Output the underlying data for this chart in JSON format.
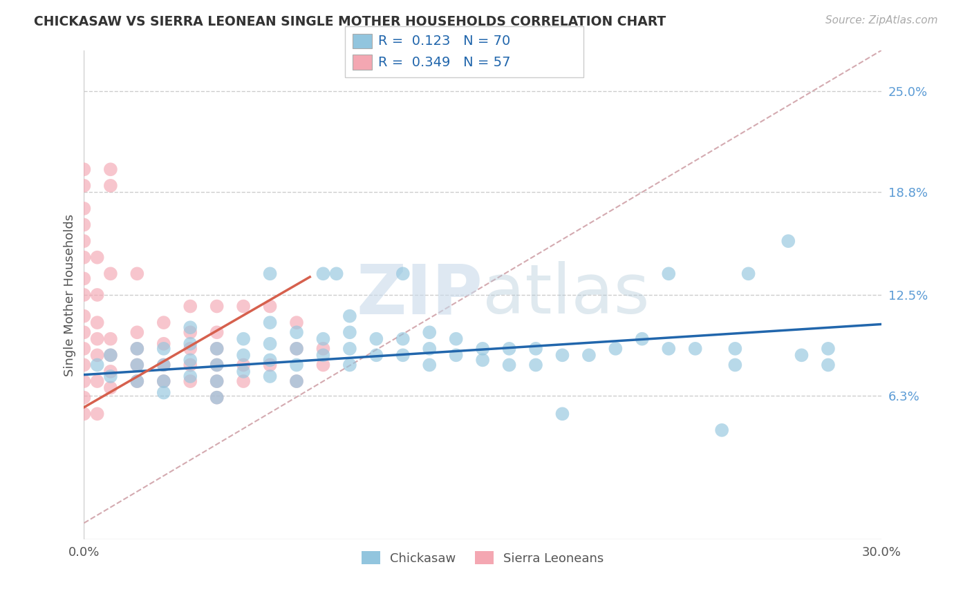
{
  "title": "CHICKASAW VS SIERRA LEONEAN SINGLE MOTHER HOUSEHOLDS CORRELATION CHART",
  "source": "Source: ZipAtlas.com",
  "ylabel": "Single Mother Households",
  "xlim": [
    0.0,
    0.3
  ],
  "ylim": [
    -0.025,
    0.275
  ],
  "ytick_labels": [
    "6.3%",
    "12.5%",
    "18.8%",
    "25.0%"
  ],
  "ytick_positions": [
    0.063,
    0.125,
    0.188,
    0.25
  ],
  "legend_label1": "Chickasaw",
  "legend_label2": "Sierra Leoneans",
  "color_blue": "#92c5de",
  "color_pink": "#f4a7b2",
  "color_blue_line": "#2166ac",
  "color_pink_line": "#d6604d",
  "color_diag": "#d4aab0",
  "blue_line_x0": 0.0,
  "blue_line_y0": 0.076,
  "blue_line_x1": 0.3,
  "blue_line_y1": 0.107,
  "pink_line_x0": 0.0,
  "pink_line_y0": 0.056,
  "pink_line_x1": 0.085,
  "pink_line_y1": 0.136,
  "blue_scatter": [
    [
      0.005,
      0.082
    ],
    [
      0.01,
      0.075
    ],
    [
      0.01,
      0.088
    ],
    [
      0.02,
      0.072
    ],
    [
      0.02,
      0.082
    ],
    [
      0.02,
      0.092
    ],
    [
      0.03,
      0.072
    ],
    [
      0.03,
      0.082
    ],
    [
      0.03,
      0.092
    ],
    [
      0.03,
      0.065
    ],
    [
      0.04,
      0.075
    ],
    [
      0.04,
      0.085
    ],
    [
      0.04,
      0.095
    ],
    [
      0.04,
      0.105
    ],
    [
      0.05,
      0.072
    ],
    [
      0.05,
      0.082
    ],
    [
      0.05,
      0.092
    ],
    [
      0.05,
      0.062
    ],
    [
      0.06,
      0.078
    ],
    [
      0.06,
      0.088
    ],
    [
      0.06,
      0.098
    ],
    [
      0.07,
      0.075
    ],
    [
      0.07,
      0.085
    ],
    [
      0.07,
      0.095
    ],
    [
      0.07,
      0.108
    ],
    [
      0.07,
      0.138
    ],
    [
      0.08,
      0.072
    ],
    [
      0.08,
      0.082
    ],
    [
      0.08,
      0.092
    ],
    [
      0.08,
      0.102
    ],
    [
      0.09,
      0.088
    ],
    [
      0.09,
      0.098
    ],
    [
      0.09,
      0.138
    ],
    [
      0.095,
      0.138
    ],
    [
      0.1,
      0.082
    ],
    [
      0.1,
      0.092
    ],
    [
      0.1,
      0.102
    ],
    [
      0.1,
      0.112
    ],
    [
      0.11,
      0.088
    ],
    [
      0.11,
      0.098
    ],
    [
      0.12,
      0.088
    ],
    [
      0.12,
      0.098
    ],
    [
      0.12,
      0.138
    ],
    [
      0.13,
      0.082
    ],
    [
      0.13,
      0.092
    ],
    [
      0.13,
      0.102
    ],
    [
      0.14,
      0.088
    ],
    [
      0.14,
      0.098
    ],
    [
      0.15,
      0.092
    ],
    [
      0.15,
      0.085
    ],
    [
      0.16,
      0.092
    ],
    [
      0.16,
      0.082
    ],
    [
      0.17,
      0.092
    ],
    [
      0.17,
      0.082
    ],
    [
      0.18,
      0.088
    ],
    [
      0.18,
      0.052
    ],
    [
      0.19,
      0.088
    ],
    [
      0.2,
      0.092
    ],
    [
      0.21,
      0.098
    ],
    [
      0.22,
      0.138
    ],
    [
      0.22,
      0.092
    ],
    [
      0.23,
      0.092
    ],
    [
      0.24,
      0.042
    ],
    [
      0.245,
      0.092
    ],
    [
      0.245,
      0.082
    ],
    [
      0.25,
      0.138
    ],
    [
      0.265,
      0.158
    ],
    [
      0.27,
      0.088
    ],
    [
      0.28,
      0.092
    ],
    [
      0.28,
      0.082
    ]
  ],
  "pink_scatter": [
    [
      0.0,
      0.052
    ],
    [
      0.0,
      0.062
    ],
    [
      0.0,
      0.072
    ],
    [
      0.0,
      0.082
    ],
    [
      0.0,
      0.092
    ],
    [
      0.0,
      0.102
    ],
    [
      0.0,
      0.112
    ],
    [
      0.0,
      0.125
    ],
    [
      0.0,
      0.135
    ],
    [
      0.0,
      0.148
    ],
    [
      0.0,
      0.158
    ],
    [
      0.0,
      0.168
    ],
    [
      0.0,
      0.178
    ],
    [
      0.0,
      0.192
    ],
    [
      0.0,
      0.202
    ],
    [
      0.005,
      0.052
    ],
    [
      0.005,
      0.072
    ],
    [
      0.005,
      0.088
    ],
    [
      0.005,
      0.098
    ],
    [
      0.005,
      0.108
    ],
    [
      0.005,
      0.125
    ],
    [
      0.005,
      0.148
    ],
    [
      0.01,
      0.068
    ],
    [
      0.01,
      0.078
    ],
    [
      0.01,
      0.088
    ],
    [
      0.01,
      0.098
    ],
    [
      0.01,
      0.138
    ],
    [
      0.01,
      0.192
    ],
    [
      0.01,
      0.202
    ],
    [
      0.02,
      0.072
    ],
    [
      0.02,
      0.082
    ],
    [
      0.02,
      0.092
    ],
    [
      0.02,
      0.102
    ],
    [
      0.02,
      0.138
    ],
    [
      0.03,
      0.072
    ],
    [
      0.03,
      0.082
    ],
    [
      0.03,
      0.095
    ],
    [
      0.03,
      0.108
    ],
    [
      0.04,
      0.072
    ],
    [
      0.04,
      0.082
    ],
    [
      0.04,
      0.092
    ],
    [
      0.04,
      0.102
    ],
    [
      0.04,
      0.118
    ],
    [
      0.05,
      0.062
    ],
    [
      0.05,
      0.072
    ],
    [
      0.05,
      0.082
    ],
    [
      0.05,
      0.092
    ],
    [
      0.05,
      0.102
    ],
    [
      0.05,
      0.118
    ],
    [
      0.06,
      0.072
    ],
    [
      0.06,
      0.082
    ],
    [
      0.06,
      0.118
    ],
    [
      0.07,
      0.082
    ],
    [
      0.07,
      0.118
    ],
    [
      0.08,
      0.072
    ],
    [
      0.08,
      0.092
    ],
    [
      0.08,
      0.108
    ],
    [
      0.09,
      0.082
    ],
    [
      0.09,
      0.092
    ]
  ]
}
